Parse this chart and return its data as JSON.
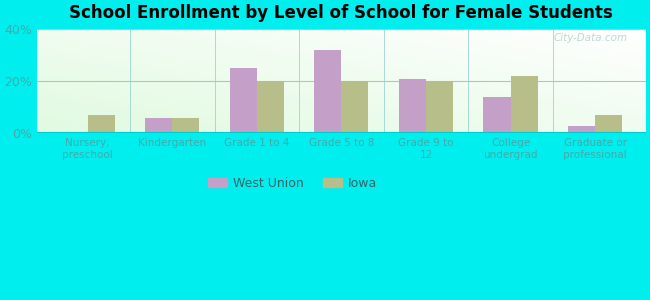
{
  "title": "School Enrollment by Level of School for Female Students",
  "categories": [
    "Nursery,\npreschool",
    "Kindergarten",
    "Grade 1 to 4",
    "Grade 5 to 8",
    "Grade 9 to\n12",
    "College\nundergrad",
    "Graduate or\nprofessional"
  ],
  "west_union": [
    0,
    6,
    25,
    32,
    21,
    14,
    3
  ],
  "iowa": [
    7,
    6,
    20,
    20,
    20,
    22,
    7
  ],
  "west_union_color": "#c4a0c8",
  "iowa_color": "#b8be8a",
  "background_color": "#00EEEE",
  "ylim": [
    0,
    40
  ],
  "yticks": [
    0,
    20,
    40
  ],
  "ytick_labels": [
    "0%",
    "20%",
    "40%"
  ],
  "bar_width": 0.32,
  "legend_labels": [
    "West Union",
    "Iowa"
  ],
  "watermark": "City-Data.com",
  "tick_color": "#44aaaa",
  "grid_color": "#b0c8b0"
}
